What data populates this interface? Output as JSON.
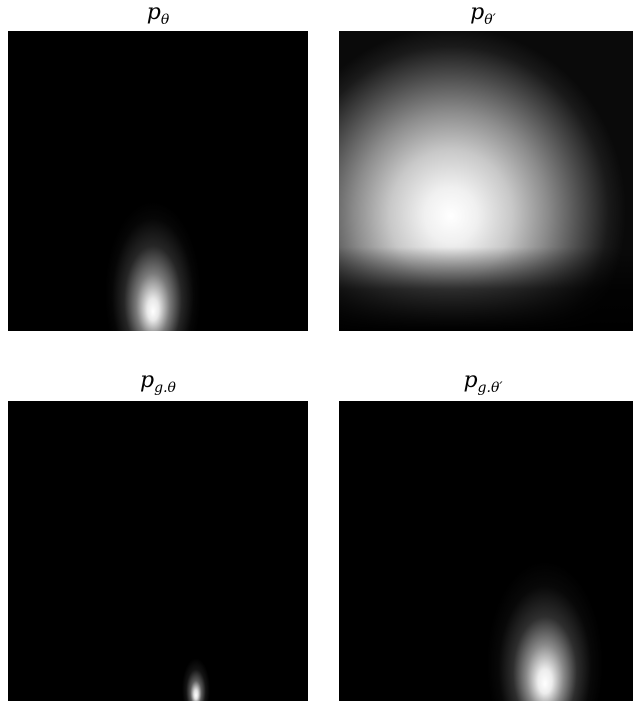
{
  "panels": [
    {
      "id": "p-theta",
      "title_base": "p",
      "title_sub": "θ",
      "background": "#000000",
      "glow": "#ffffff"
    },
    {
      "id": "p-theta-prime",
      "title_base": "p",
      "title_sub": "θ′",
      "background": "#000000",
      "glow": "#ffffff"
    },
    {
      "id": "pg-theta",
      "title_base": "p",
      "title_sub": "g.θ",
      "background": "#000000",
      "glow": "#ffffff"
    },
    {
      "id": "pg-theta-prime",
      "title_base": "p",
      "title_sub": "g.θ′",
      "background": "#000000",
      "glow": "#ffffff"
    }
  ]
}
